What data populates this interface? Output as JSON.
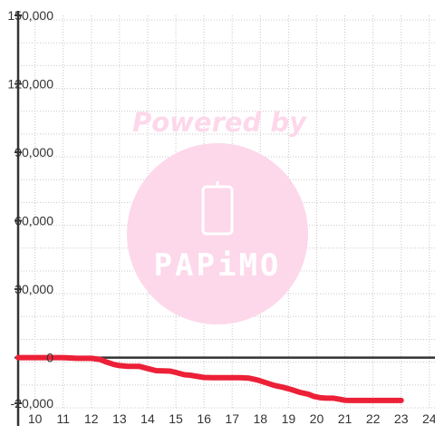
{
  "watermark": {
    "text": "Powered by",
    "brand": "PAPiMO",
    "color": "#fcd8ea"
  },
  "chart_data": {
    "type": "line",
    "xlim": [
      9.4,
      24.2
    ],
    "ylim": [
      -22000,
      150000
    ],
    "x_ticks": [
      10,
      11,
      12,
      13,
      14,
      15,
      16,
      17,
      18,
      19,
      20,
      21,
      22,
      23,
      24
    ],
    "y_ticks": [
      -20000,
      0,
      30000,
      60000,
      90000,
      120000,
      150000
    ],
    "x_tick_labels": [
      "10",
      "11",
      "12",
      "13",
      "14",
      "15",
      "16",
      "17",
      "18",
      "19",
      "20",
      "21",
      "22",
      "23",
      "24"
    ],
    "y_tick_labels": [
      "-20,000",
      "0",
      "30,000",
      "60,000",
      "90,000",
      "120,000",
      "150,000"
    ],
    "grid": true,
    "colors": {
      "line": "#ec2037",
      "axis": "#333333",
      "grid": "#c8c8c8"
    },
    "series": [
      {
        "x": [
          9.4,
          10.0,
          11.0,
          11.5,
          12.0,
          12.3,
          12.5,
          12.8,
          13.0,
          13.3,
          13.7,
          14.0,
          14.3,
          14.8,
          15.0,
          15.3,
          15.5,
          15.8,
          16.0,
          16.3,
          16.7,
          17.0,
          17.3,
          17.6,
          17.9,
          18.2,
          18.5,
          18.8,
          19.1,
          19.4,
          19.7,
          19.9,
          20.1,
          20.3,
          20.6,
          20.8,
          21.0,
          21.3,
          21.6,
          22.0,
          22.5,
          23.0
        ],
        "y": [
          0,
          0,
          0,
          -300,
          -300,
          -800,
          -1800,
          -3000,
          -3500,
          -3800,
          -3800,
          -4800,
          -5700,
          -5900,
          -6500,
          -7500,
          -7700,
          -8300,
          -8700,
          -8800,
          -8800,
          -8800,
          -8800,
          -9000,
          -9800,
          -11000,
          -12200,
          -13000,
          -14000,
          -15200,
          -16000,
          -17000,
          -17500,
          -17700,
          -17800,
          -18200,
          -18700,
          -18800,
          -18800,
          -18800,
          -18800,
          -18800
        ]
      }
    ]
  }
}
